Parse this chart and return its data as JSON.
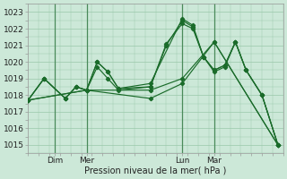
{
  "bg_color": "#cce8d8",
  "line_color": "#1a6b2a",
  "grid_color": "#99c8aa",
  "xlabel": "Pression niveau de la mer( hPa )",
  "ylim": [
    1014.5,
    1023.5
  ],
  "yticks": [
    1015,
    1016,
    1017,
    1018,
    1019,
    1020,
    1021,
    1022,
    1023
  ],
  "xtick_labels": [
    "Dim",
    "Mer",
    "Lun",
    "Mar"
  ],
  "xtick_positions": [
    10,
    22,
    58,
    70
  ],
  "xvlines": [
    10,
    22,
    58,
    70
  ],
  "xlim": [
    0,
    96
  ],
  "lines": [
    {
      "x": [
        0,
        6,
        14,
        18,
        22,
        26,
        30,
        34,
        46,
        58,
        62,
        66,
        70,
        74,
        78,
        82,
        88,
        94
      ],
      "y": [
        1017.7,
        1019.0,
        1017.8,
        1018.5,
        1018.3,
        1020.0,
        1019.4,
        1018.4,
        1018.7,
        1022.6,
        1022.2,
        1020.3,
        1019.5,
        1019.8,
        1021.2,
        1019.5,
        1018.0,
        1015.0
      ]
    },
    {
      "x": [
        0,
        6,
        14,
        18,
        22,
        26,
        30,
        34,
        46,
        52,
        58,
        62,
        66,
        70,
        74,
        78,
        82,
        88,
        94
      ],
      "y": [
        1017.7,
        1019.0,
        1017.8,
        1018.5,
        1018.3,
        1020.0,
        1019.4,
        1018.4,
        1018.5,
        1021.1,
        1022.3,
        1022.0,
        1020.3,
        1019.5,
        1019.8,
        1021.2,
        1019.5,
        1018.0,
        1015.0
      ]
    },
    {
      "x": [
        0,
        22,
        46,
        58,
        70,
        94
      ],
      "y": [
        1017.7,
        1018.3,
        1018.3,
        1019.0,
        1021.2,
        1015.0
      ]
    },
    {
      "x": [
        0,
        22,
        46,
        58,
        70,
        94
      ],
      "y": [
        1017.7,
        1018.3,
        1017.8,
        1018.7,
        1021.2,
        1015.0
      ]
    },
    {
      "x": [
        0,
        6,
        14,
        18,
        22,
        26,
        30,
        34,
        46,
        52,
        58,
        62,
        66,
        70,
        74,
        78,
        82,
        88,
        94
      ],
      "y": [
        1017.7,
        1019.0,
        1017.8,
        1018.5,
        1018.3,
        1019.7,
        1019.0,
        1018.3,
        1018.5,
        1021.0,
        1022.5,
        1022.1,
        1020.3,
        1019.4,
        1019.7,
        1021.2,
        1019.5,
        1018.0,
        1015.0
      ]
    }
  ]
}
